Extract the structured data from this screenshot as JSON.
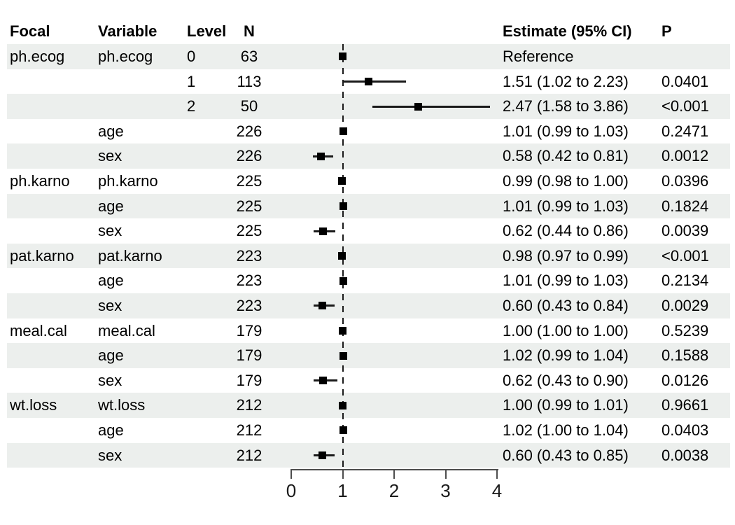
{
  "table": {
    "headers": {
      "focal": "Focal",
      "variable": "Variable",
      "level": "Level",
      "n": "N",
      "estimate": "Estimate (95% CI)",
      "p": "P"
    }
  },
  "chart_data": {
    "type": "forest",
    "title": "",
    "xlabel": "",
    "ylabel": "",
    "xlim": [
      0,
      4
    ],
    "x_ticks": [
      0,
      1,
      2,
      3,
      4
    ],
    "reference_line": 1,
    "grid": false,
    "legend_position": "none",
    "marker_shape": "square",
    "rows": [
      {
        "focal": "ph.ecog",
        "variable": "ph.ecog",
        "level": "0",
        "n": "63",
        "estimate_label": "Reference",
        "p": "",
        "est": 1.0,
        "lo": null,
        "hi": null
      },
      {
        "focal": "",
        "variable": "",
        "level": "1",
        "n": "113",
        "estimate_label": "1.51 (1.02 to 2.23)",
        "p": "0.0401",
        "est": 1.51,
        "lo": 1.02,
        "hi": 2.23
      },
      {
        "focal": "",
        "variable": "",
        "level": "2",
        "n": "50",
        "estimate_label": "2.47 (1.58 to 3.86)",
        "p": "<0.001",
        "est": 2.47,
        "lo": 1.58,
        "hi": 3.86
      },
      {
        "focal": "",
        "variable": "age",
        "level": "",
        "n": "226",
        "estimate_label": "1.01 (0.99 to 1.03)",
        "p": "0.2471",
        "est": 1.01,
        "lo": 0.99,
        "hi": 1.03
      },
      {
        "focal": "",
        "variable": "sex",
        "level": "",
        "n": "226",
        "estimate_label": "0.58 (0.42 to 0.81)",
        "p": "0.0012",
        "est": 0.58,
        "lo": 0.42,
        "hi": 0.81
      },
      {
        "focal": "ph.karno",
        "variable": "ph.karno",
        "level": "",
        "n": "225",
        "estimate_label": "0.99 (0.98 to 1.00)",
        "p": "0.0396",
        "est": 0.99,
        "lo": 0.98,
        "hi": 1.0
      },
      {
        "focal": "",
        "variable": "age",
        "level": "",
        "n": "225",
        "estimate_label": "1.01 (0.99 to 1.03)",
        "p": "0.1824",
        "est": 1.01,
        "lo": 0.99,
        "hi": 1.03
      },
      {
        "focal": "",
        "variable": "sex",
        "level": "",
        "n": "225",
        "estimate_label": "0.62 (0.44 to 0.86)",
        "p": "0.0039",
        "est": 0.62,
        "lo": 0.44,
        "hi": 0.86
      },
      {
        "focal": "pat.karno",
        "variable": "pat.karno",
        "level": "",
        "n": "223",
        "estimate_label": "0.98 (0.97 to 0.99)",
        "p": "<0.001",
        "est": 0.98,
        "lo": 0.97,
        "hi": 0.99
      },
      {
        "focal": "",
        "variable": "age",
        "level": "",
        "n": "223",
        "estimate_label": "1.01 (0.99 to 1.03)",
        "p": "0.2134",
        "est": 1.01,
        "lo": 0.99,
        "hi": 1.03
      },
      {
        "focal": "",
        "variable": "sex",
        "level": "",
        "n": "223",
        "estimate_label": "0.60 (0.43 to 0.84)",
        "p": "0.0029",
        "est": 0.6,
        "lo": 0.43,
        "hi": 0.84
      },
      {
        "focal": "meal.cal",
        "variable": "meal.cal",
        "level": "",
        "n": "179",
        "estimate_label": "1.00 (1.00 to 1.00)",
        "p": "0.5239",
        "est": 1.0,
        "lo": 1.0,
        "hi": 1.0
      },
      {
        "focal": "",
        "variable": "age",
        "level": "",
        "n": "179",
        "estimate_label": "1.02 (0.99 to 1.04)",
        "p": "0.1588",
        "est": 1.02,
        "lo": 0.99,
        "hi": 1.04
      },
      {
        "focal": "",
        "variable": "sex",
        "level": "",
        "n": "179",
        "estimate_label": "0.62 (0.43 to 0.90)",
        "p": "0.0126",
        "est": 0.62,
        "lo": 0.43,
        "hi": 0.9
      },
      {
        "focal": "wt.loss",
        "variable": "wt.loss",
        "level": "",
        "n": "212",
        "estimate_label": "1.00 (0.99 to 1.01)",
        "p": "0.9661",
        "est": 1.0,
        "lo": 0.99,
        "hi": 1.01
      },
      {
        "focal": "",
        "variable": "age",
        "level": "",
        "n": "212",
        "estimate_label": "1.02 (1.00 to 1.04)",
        "p": "0.0403",
        "est": 1.02,
        "lo": 1.0,
        "hi": 1.04
      },
      {
        "focal": "",
        "variable": "sex",
        "level": "",
        "n": "212",
        "estimate_label": "0.60 (0.43 to 0.85)",
        "p": "0.0038",
        "est": 0.6,
        "lo": 0.43,
        "hi": 0.85
      }
    ]
  },
  "colors": {
    "band": "#ECEFED",
    "axis": "#4D4D4D",
    "marker": "#000000",
    "reference_line_color": "#1A1A1A",
    "text": "#000000"
  }
}
